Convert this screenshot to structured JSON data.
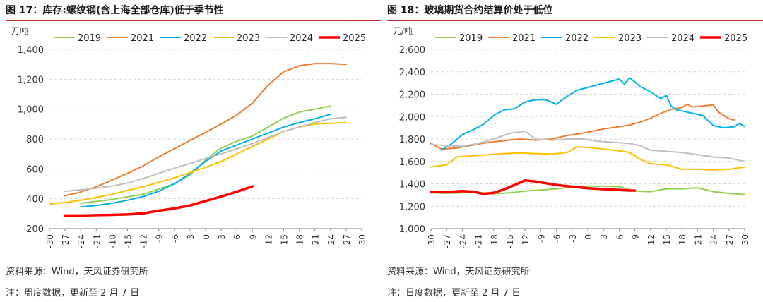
{
  "panels": [
    {
      "title": "图 17：库存:螺纹钢(含上海全部仓库)低于季节性",
      "source": "资料来源：Wind，天风证券研究所",
      "note": "注：周度数据，更新至 2 月 7 日"
    },
    {
      "title": "图 18：玻璃期货合约结算价处于低位",
      "source": "资料来源：Wind，天风证券研究所",
      "note": "注：日度数据，更新至 2 月 7 日"
    }
  ],
  "chart_data": [
    {
      "type": "line",
      "ylabel": "万吨",
      "ylim": [
        200,
        1400
      ],
      "yticks": [
        200,
        400,
        600,
        800,
        1000,
        1200,
        1400
      ],
      "y_tick_labels": [
        "200",
        "400",
        "600",
        "800",
        "1,000",
        "1,200",
        "1,400"
      ],
      "xlim": [
        -30,
        30
      ],
      "xticks": [
        -30,
        -27,
        -24,
        -21,
        -18,
        -15,
        -12,
        -9,
        -6,
        -3,
        0,
        3,
        6,
        9,
        12,
        15,
        18,
        21,
        24,
        27,
        30
      ],
      "x_tick_labels": [
        "-30",
        "-27",
        "-24",
        "-21",
        "-18",
        "-15",
        "-12",
        "-9",
        "-6",
        "-3",
        "0",
        "3",
        "6",
        "9",
        "12",
        "15",
        "18",
        "21",
        "24",
        "27",
        "30"
      ],
      "grid": "horizontal",
      "legend": "top",
      "series": [
        {
          "name": "2019",
          "color": "#92d050",
          "width": 2,
          "x": [
            -24,
            -18,
            -12,
            -6,
            -3,
            0,
            3,
            6,
            9,
            12,
            15,
            18,
            21,
            24
          ],
          "values": [
            370,
            395,
            430,
            500,
            560,
            660,
            740,
            785,
            820,
            880,
            940,
            980,
            1000,
            1020
          ]
        },
        {
          "name": "2021",
          "color": "#ed7d31",
          "width": 2,
          "x": [
            -27,
            -24,
            -21,
            -18,
            -15,
            -12,
            -9,
            -6,
            -3,
            0,
            3,
            6,
            9,
            12,
            15,
            18,
            21,
            24,
            27
          ],
          "values": [
            420,
            445,
            480,
            525,
            570,
            620,
            680,
            735,
            790,
            845,
            900,
            960,
            1040,
            1160,
            1250,
            1290,
            1305,
            1305,
            1300
          ]
        },
        {
          "name": "2022",
          "color": "#00b0f0",
          "width": 2,
          "x": [
            -24,
            -21,
            -18,
            -15,
            -12,
            -9,
            -6,
            -3,
            0,
            3,
            6,
            9,
            12,
            15,
            18,
            21,
            24
          ],
          "values": [
            345,
            355,
            370,
            390,
            415,
            450,
            500,
            570,
            650,
            720,
            760,
            800,
            840,
            880,
            910,
            935,
            965
          ]
        },
        {
          "name": "2023",
          "color": "#ffc000",
          "width": 2,
          "x": [
            -30,
            -27,
            -24,
            -21,
            -18,
            -15,
            -12,
            -9,
            -6,
            -3,
            0,
            3,
            6,
            9,
            12,
            15,
            18,
            21,
            24,
            27
          ],
          "values": [
            365,
            375,
            390,
            410,
            430,
            455,
            480,
            510,
            540,
            575,
            610,
            650,
            700,
            750,
            800,
            850,
            880,
            900,
            905,
            910
          ]
        },
        {
          "name": "2024",
          "color": "#bfbfbf",
          "width": 2,
          "x": [
            -27,
            -24,
            -21,
            -18,
            -15,
            -12,
            -9,
            -6,
            -3,
            0,
            3,
            6,
            9,
            12,
            15,
            18,
            21,
            24,
            27
          ],
          "values": [
            450,
            460,
            470,
            485,
            505,
            535,
            570,
            605,
            635,
            670,
            700,
            735,
            770,
            810,
            850,
            880,
            910,
            935,
            945
          ]
        },
        {
          "name": "2025",
          "color": "#ff0000",
          "width": 3.5,
          "x": [
            -27,
            -24,
            -21,
            -18,
            -15,
            -12,
            -9,
            -6,
            -3,
            0,
            3,
            6,
            9
          ],
          "values": [
            288,
            288,
            290,
            292,
            295,
            302,
            320,
            335,
            355,
            385,
            415,
            447,
            483
          ]
        }
      ]
    },
    {
      "type": "line",
      "ylabel": "元/吨",
      "ylim": [
        1000,
        2600
      ],
      "yticks": [
        1000,
        1200,
        1400,
        1600,
        1800,
        2000,
        2200,
        2400,
        2600
      ],
      "y_tick_labels": [
        "1,000",
        "1,200",
        "1,400",
        "1,600",
        "1,800",
        "2,000",
        "2,200",
        "2,400",
        "2,600"
      ],
      "xlim": [
        -30,
        30
      ],
      "xticks": [
        -30,
        -27,
        -24,
        -21,
        -18,
        -15,
        -12,
        -9,
        -6,
        -3,
        0,
        3,
        6,
        9,
        12,
        15,
        18,
        21,
        24,
        27,
        30
      ],
      "x_tick_labels": [
        "-30",
        "-27",
        "-24",
        "-21",
        "-18",
        "-15",
        "-12",
        "-9",
        "-6",
        "-3",
        "0",
        "3",
        "6",
        "9",
        "12",
        "15",
        "18",
        "21",
        "24",
        "27",
        "30"
      ],
      "grid": "horizontal",
      "legend": "top",
      "series": [
        {
          "name": "2019",
          "color": "#92d050",
          "width": 2,
          "x": [
            -30,
            -27,
            -24,
            -21,
            -18,
            -15,
            -12,
            -9,
            -6,
            -3,
            0,
            3,
            6,
            9,
            12,
            15,
            18,
            21,
            24,
            27,
            30
          ],
          "values": [
            1320,
            1315,
            1320,
            1325,
            1310,
            1320,
            1335,
            1345,
            1355,
            1370,
            1380,
            1380,
            1375,
            1335,
            1330,
            1355,
            1355,
            1365,
            1330,
            1315,
            1305
          ]
        },
        {
          "name": "2021",
          "color": "#ed7d31",
          "width": 2,
          "x": [
            -30,
            -28,
            -25,
            -22,
            -19,
            -16,
            -13,
            -10,
            -7,
            -4,
            0,
            3,
            6,
            8,
            10,
            12,
            14,
            16,
            18,
            19,
            20,
            22,
            24,
            25,
            27,
            28
          ],
          "values": [
            1760,
            1710,
            1720,
            1745,
            1770,
            1785,
            1800,
            1790,
            1800,
            1830,
            1860,
            1890,
            1910,
            1925,
            1950,
            1985,
            2030,
            2065,
            2080,
            2110,
            2085,
            2095,
            2105,
            2040,
            1980,
            1970
          ]
        },
        {
          "name": "2022",
          "color": "#00b0f0",
          "width": 2,
          "x": [
            -28,
            -26,
            -24,
            -22,
            -20,
            -18,
            -16,
            -14,
            -12,
            -10,
            -8,
            -6,
            -4,
            -2,
            0,
            2,
            4,
            6,
            7,
            8,
            9,
            10,
            12,
            14,
            15,
            16,
            17,
            18,
            20,
            22,
            24,
            26,
            28,
            29,
            30
          ],
          "values": [
            1700,
            1760,
            1840,
            1880,
            1930,
            2010,
            2060,
            2070,
            2130,
            2150,
            2150,
            2110,
            2180,
            2235,
            2260,
            2285,
            2310,
            2335,
            2290,
            2345,
            2310,
            2270,
            2220,
            2160,
            2190,
            2090,
            2060,
            2050,
            2030,
            2010,
            1920,
            1900,
            1910,
            1940,
            1910
          ]
        },
        {
          "name": "2023",
          "color": "#ffc000",
          "width": 2,
          "x": [
            -30,
            -27,
            -25,
            -22,
            -19,
            -16,
            -13,
            -10,
            -7,
            -4,
            -2,
            0,
            3,
            6,
            8,
            10,
            12,
            15,
            18,
            21,
            24,
            27,
            30
          ],
          "values": [
            1550,
            1570,
            1640,
            1650,
            1660,
            1670,
            1675,
            1670,
            1665,
            1680,
            1730,
            1725,
            1710,
            1695,
            1680,
            1620,
            1580,
            1570,
            1530,
            1530,
            1525,
            1530,
            1550
          ]
        },
        {
          "name": "2024",
          "color": "#bfbfbf",
          "width": 2,
          "x": [
            -30,
            -27,
            -24,
            -21,
            -18,
            -15,
            -12,
            -10,
            -7,
            -4,
            -1,
            2,
            5,
            8,
            10,
            12,
            15,
            18,
            21,
            24,
            27,
            30
          ],
          "values": [
            1750,
            1740,
            1735,
            1760,
            1800,
            1850,
            1870,
            1800,
            1790,
            1800,
            1800,
            1780,
            1770,
            1760,
            1740,
            1700,
            1690,
            1680,
            1660,
            1640,
            1630,
            1600
          ]
        },
        {
          "name": "2025",
          "color": "#ff0000",
          "width": 3.5,
          "x": [
            -30,
            -28,
            -26,
            -24,
            -22,
            -20,
            -18,
            -16,
            -14,
            -12,
            -10,
            -8,
            -6,
            -4,
            -2,
            0,
            2,
            4,
            6,
            8,
            9
          ],
          "values": [
            1330,
            1325,
            1330,
            1335,
            1330,
            1310,
            1320,
            1350,
            1390,
            1430,
            1420,
            1405,
            1390,
            1380,
            1370,
            1360,
            1355,
            1350,
            1345,
            1340,
            1340
          ]
        }
      ]
    }
  ]
}
